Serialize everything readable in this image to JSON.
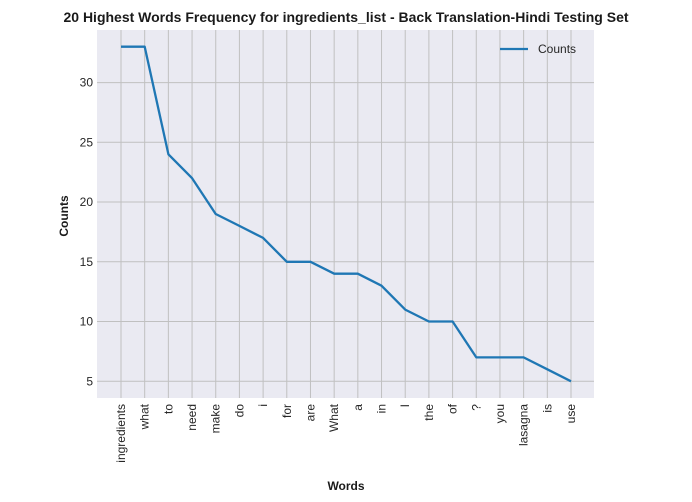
{
  "chart_data": {
    "type": "line",
    "title": "20 Highest Words Frequency for ingredients_list - Back Translation-Hindi Testing Set",
    "xlabel": "Words",
    "ylabel": "Counts",
    "categories": [
      "ingredients",
      "what",
      "to",
      "need",
      "make",
      "do",
      "i",
      "for",
      "are",
      "What",
      "a",
      "in",
      "I",
      "the",
      "of",
      "?",
      "you",
      "lasagna",
      "is",
      "use"
    ],
    "series": [
      {
        "name": "Counts",
        "values": [
          33,
          33,
          24,
          22,
          19,
          18,
          17,
          15,
          15,
          14,
          14,
          13,
          11,
          10,
          10,
          7,
          7,
          7,
          6,
          5
        ]
      }
    ],
    "yticks": [
      5,
      10,
      15,
      20,
      25,
      30
    ],
    "ylim": [
      3.6,
      34.4
    ],
    "grid": true,
    "legend_position": "upper-right",
    "colors": {
      "line": "#1f77b4",
      "plot_bg": "#eaeaf2",
      "grid": "#c0c0c0"
    }
  }
}
